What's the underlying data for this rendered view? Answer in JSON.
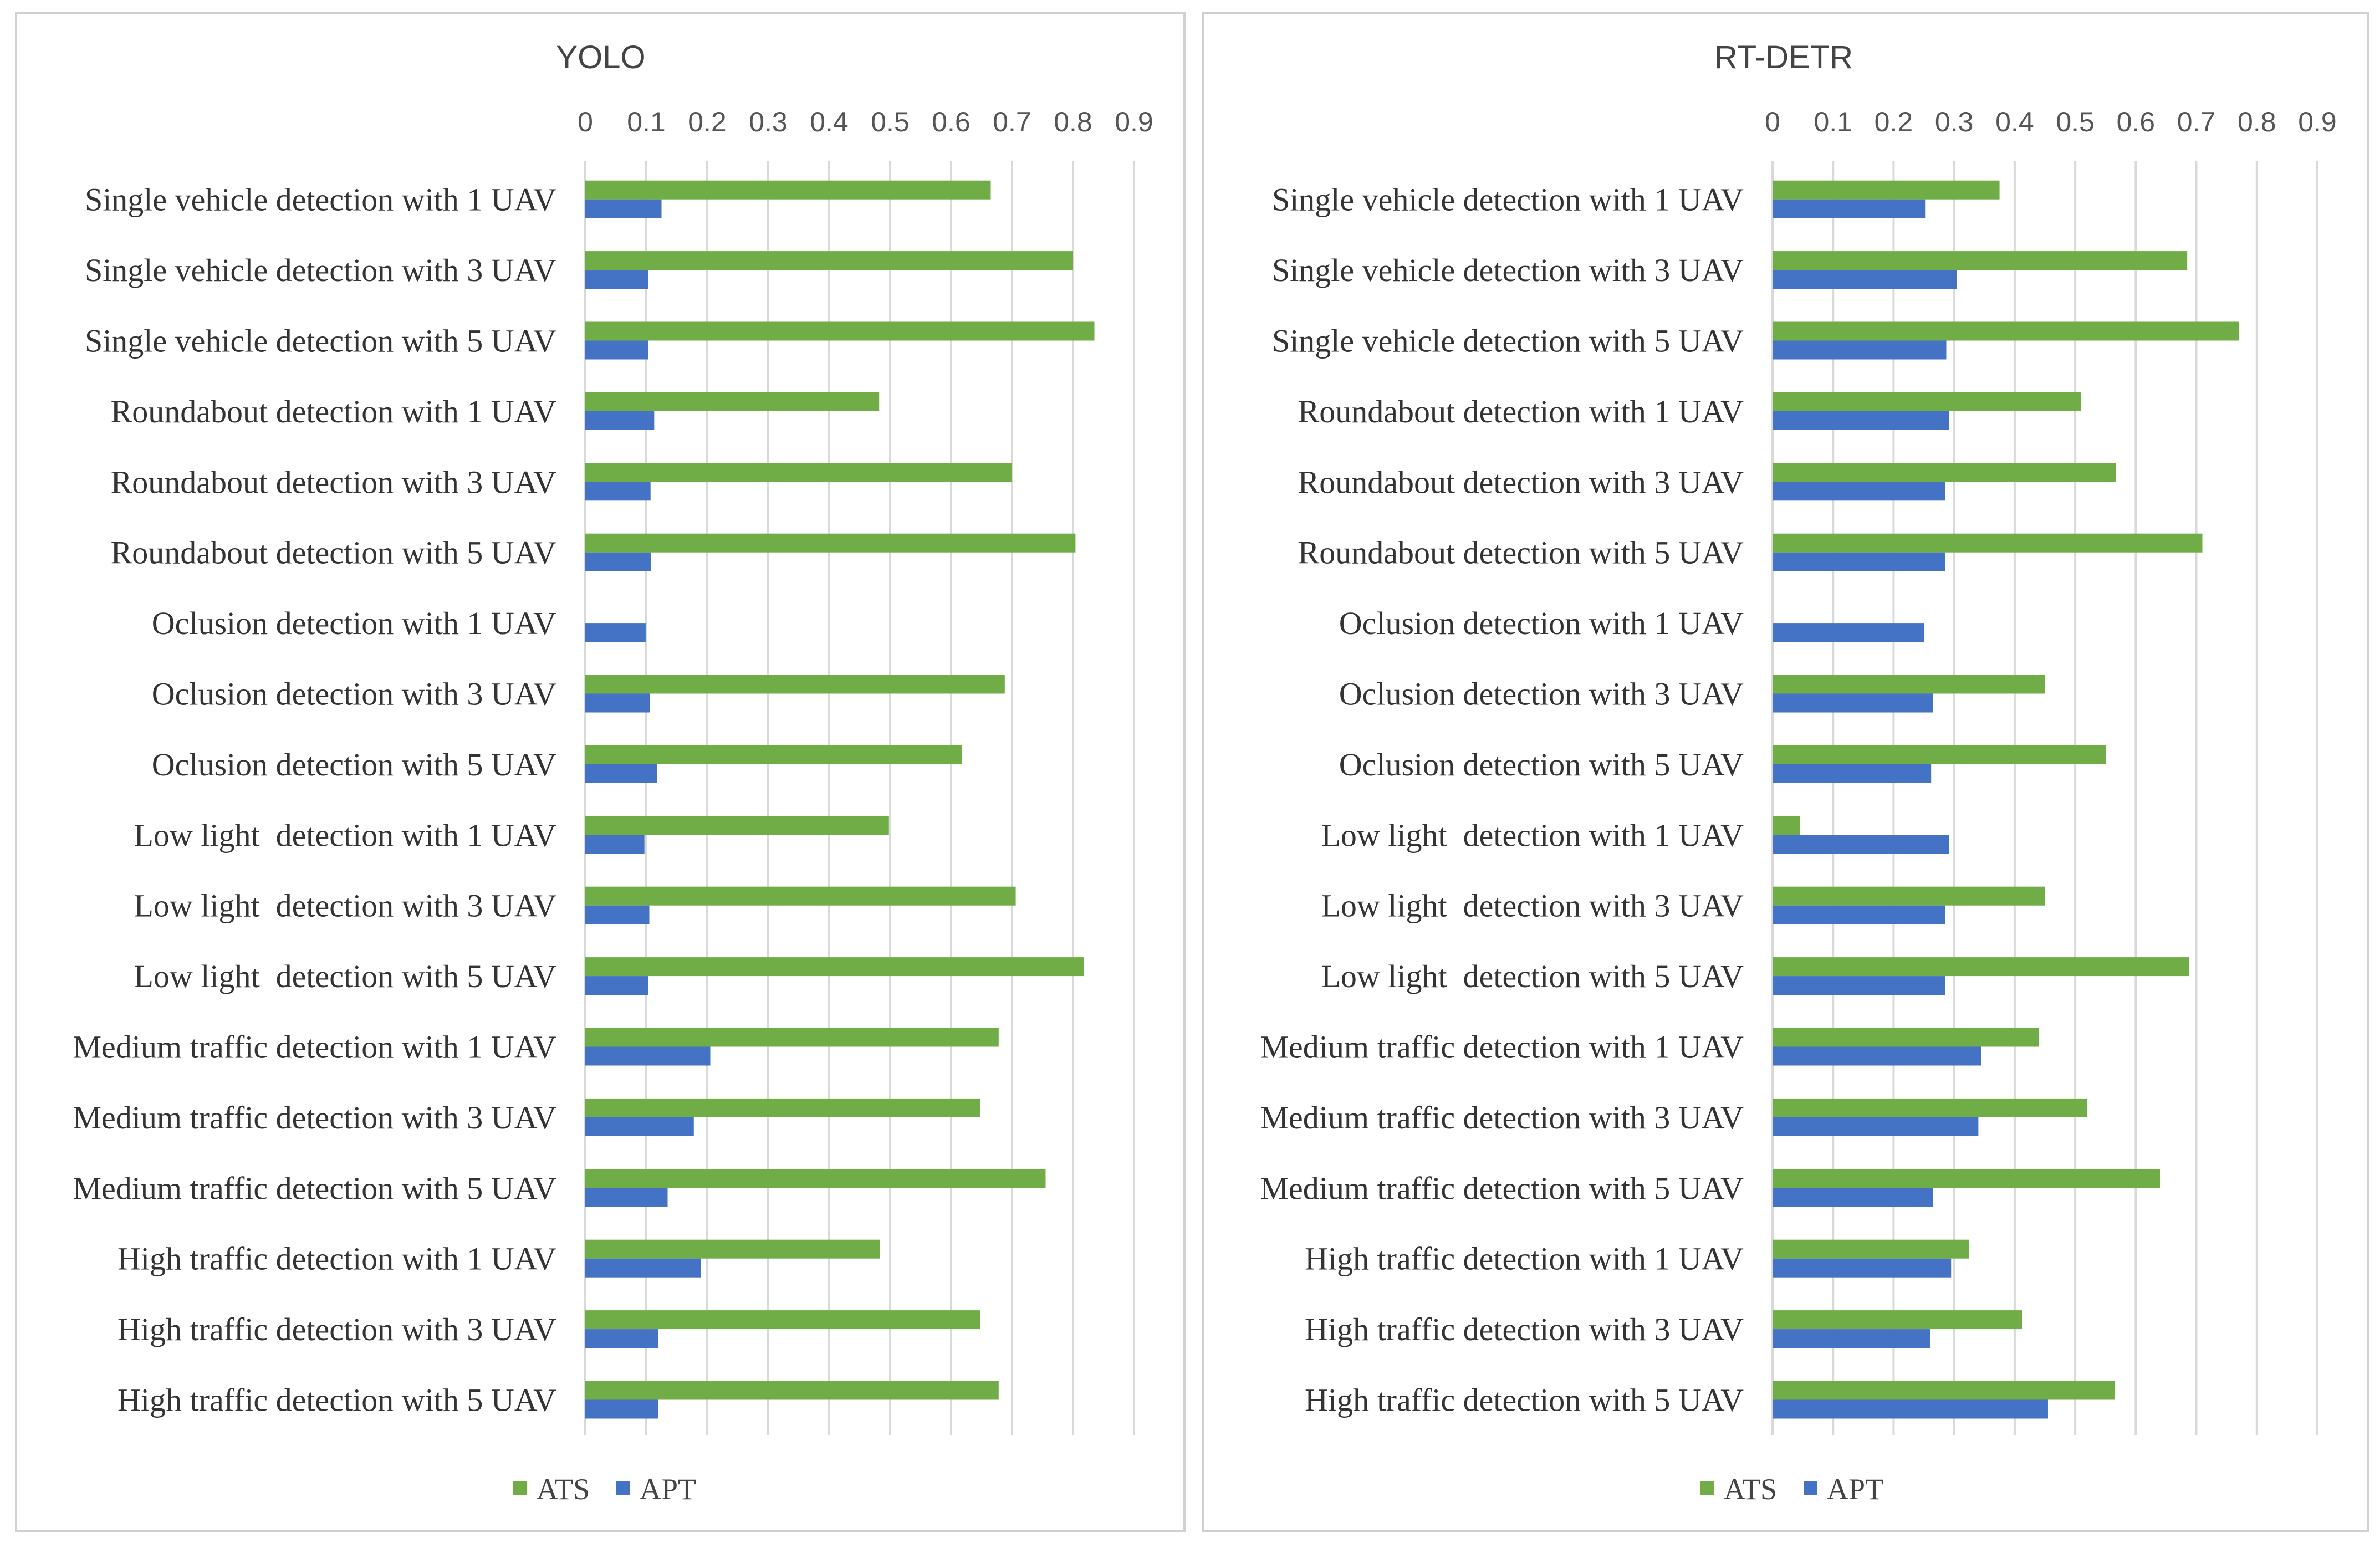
{
  "colors": {
    "ATS": "#70ad47",
    "APT": "#4472c4"
  },
  "chart_data": [
    {
      "type": "bar",
      "orientation": "horizontal",
      "title": "YOLO",
      "xlim": [
        0,
        0.9
      ],
      "ticks": [
        "0",
        "0.1",
        "0.2",
        "0.3",
        "0.4",
        "0.5",
        "0.6",
        "0.7",
        "0.8",
        "0.9"
      ],
      "tick_values": [
        0,
        0.1,
        0.2,
        0.3,
        0.4,
        0.5,
        0.6,
        0.7,
        0.8,
        0.9
      ],
      "legend": [
        "ATS",
        "APT"
      ],
      "legend_position": "bottom",
      "categories": [
        "Single vehicle detection with 1 UAV",
        "Single vehicle detection with 3 UAV",
        "Single vehicle detection with 5 UAV",
        "Roundabout detection with 1 UAV",
        "Roundabout detection with 3 UAV",
        "Roundabout detection with 5 UAV",
        "Oclusion detection with 1 UAV",
        "Oclusion detection with 3 UAV",
        "Oclusion detection with 5 UAV",
        "Low light  detection with 1 UAV",
        "Low light  detection with 3 UAV",
        "Low light  detection with 5 UAV",
        "Medium traffic detection with 1 UAV",
        "Medium traffic detection with 3 UAV",
        "Medium traffic detection with 5 UAV",
        "High traffic detection with 1 UAV",
        "High traffic detection with 3 UAV",
        "High traffic detection with 5 UAV"
      ],
      "series": [
        {
          "name": "ATS",
          "values": [
            0.665,
            0.8,
            0.835,
            0.482,
            0.7,
            0.804,
            0,
            0.688,
            0.618,
            0.498,
            0.706,
            0.818,
            0.678,
            0.648,
            0.755,
            0.483,
            0.648,
            0.678
          ]
        },
        {
          "name": "APT",
          "values": [
            0.125,
            0.103,
            0.103,
            0.113,
            0.107,
            0.108,
            0.099,
            0.106,
            0.118,
            0.097,
            0.105,
            0.103,
            0.205,
            0.178,
            0.135,
            0.19,
            0.12,
            0.12
          ]
        }
      ]
    },
    {
      "type": "bar",
      "orientation": "horizontal",
      "title": "RT-DETR",
      "xlim": [
        0,
        0.9
      ],
      "ticks": [
        "0",
        "0.1",
        "0.2",
        "0.3",
        "0.4",
        "0.5",
        "0.6",
        "0.7",
        "0.8",
        "0.9"
      ],
      "tick_values": [
        0,
        0.1,
        0.2,
        0.3,
        0.4,
        0.5,
        0.6,
        0.7,
        0.8,
        0.9
      ],
      "legend": [
        "ATS",
        "APT"
      ],
      "legend_position": "bottom",
      "categories": [
        "Single vehicle detection with 1 UAV",
        "Single vehicle detection with 3 UAV",
        "Single vehicle detection with 5 UAV",
        "Roundabout detection with 1 UAV",
        "Roundabout detection with 3 UAV",
        "Roundabout detection with 5 UAV",
        "Oclusion detection with 1 UAV",
        "Oclusion detection with 3 UAV",
        "Oclusion detection with 5 UAV",
        "Low light  detection with 1 UAV",
        "Low light  detection with 3 UAV",
        "Low light  detection with 5 UAV",
        "Medium traffic detection with 1 UAV",
        "Medium traffic detection with 3 UAV",
        "Medium traffic detection with 5 UAV",
        "High traffic detection with 1 UAV",
        "High traffic detection with 3 UAV",
        "High traffic detection with 5 UAV"
      ],
      "series": [
        {
          "name": "ATS",
          "values": [
            0.375,
            0.685,
            0.77,
            0.51,
            0.567,
            0.71,
            0,
            0.45,
            0.551,
            0.045,
            0.45,
            0.688,
            0.44,
            0.52,
            0.64,
            0.325,
            0.412,
            0.565
          ]
        },
        {
          "name": "APT",
          "values": [
            0.252,
            0.304,
            0.287,
            0.292,
            0.285,
            0.285,
            0.25,
            0.265,
            0.262,
            0.292,
            0.285,
            0.285,
            0.345,
            0.34,
            0.265,
            0.295,
            0.26,
            0.455
          ]
        }
      ]
    }
  ]
}
